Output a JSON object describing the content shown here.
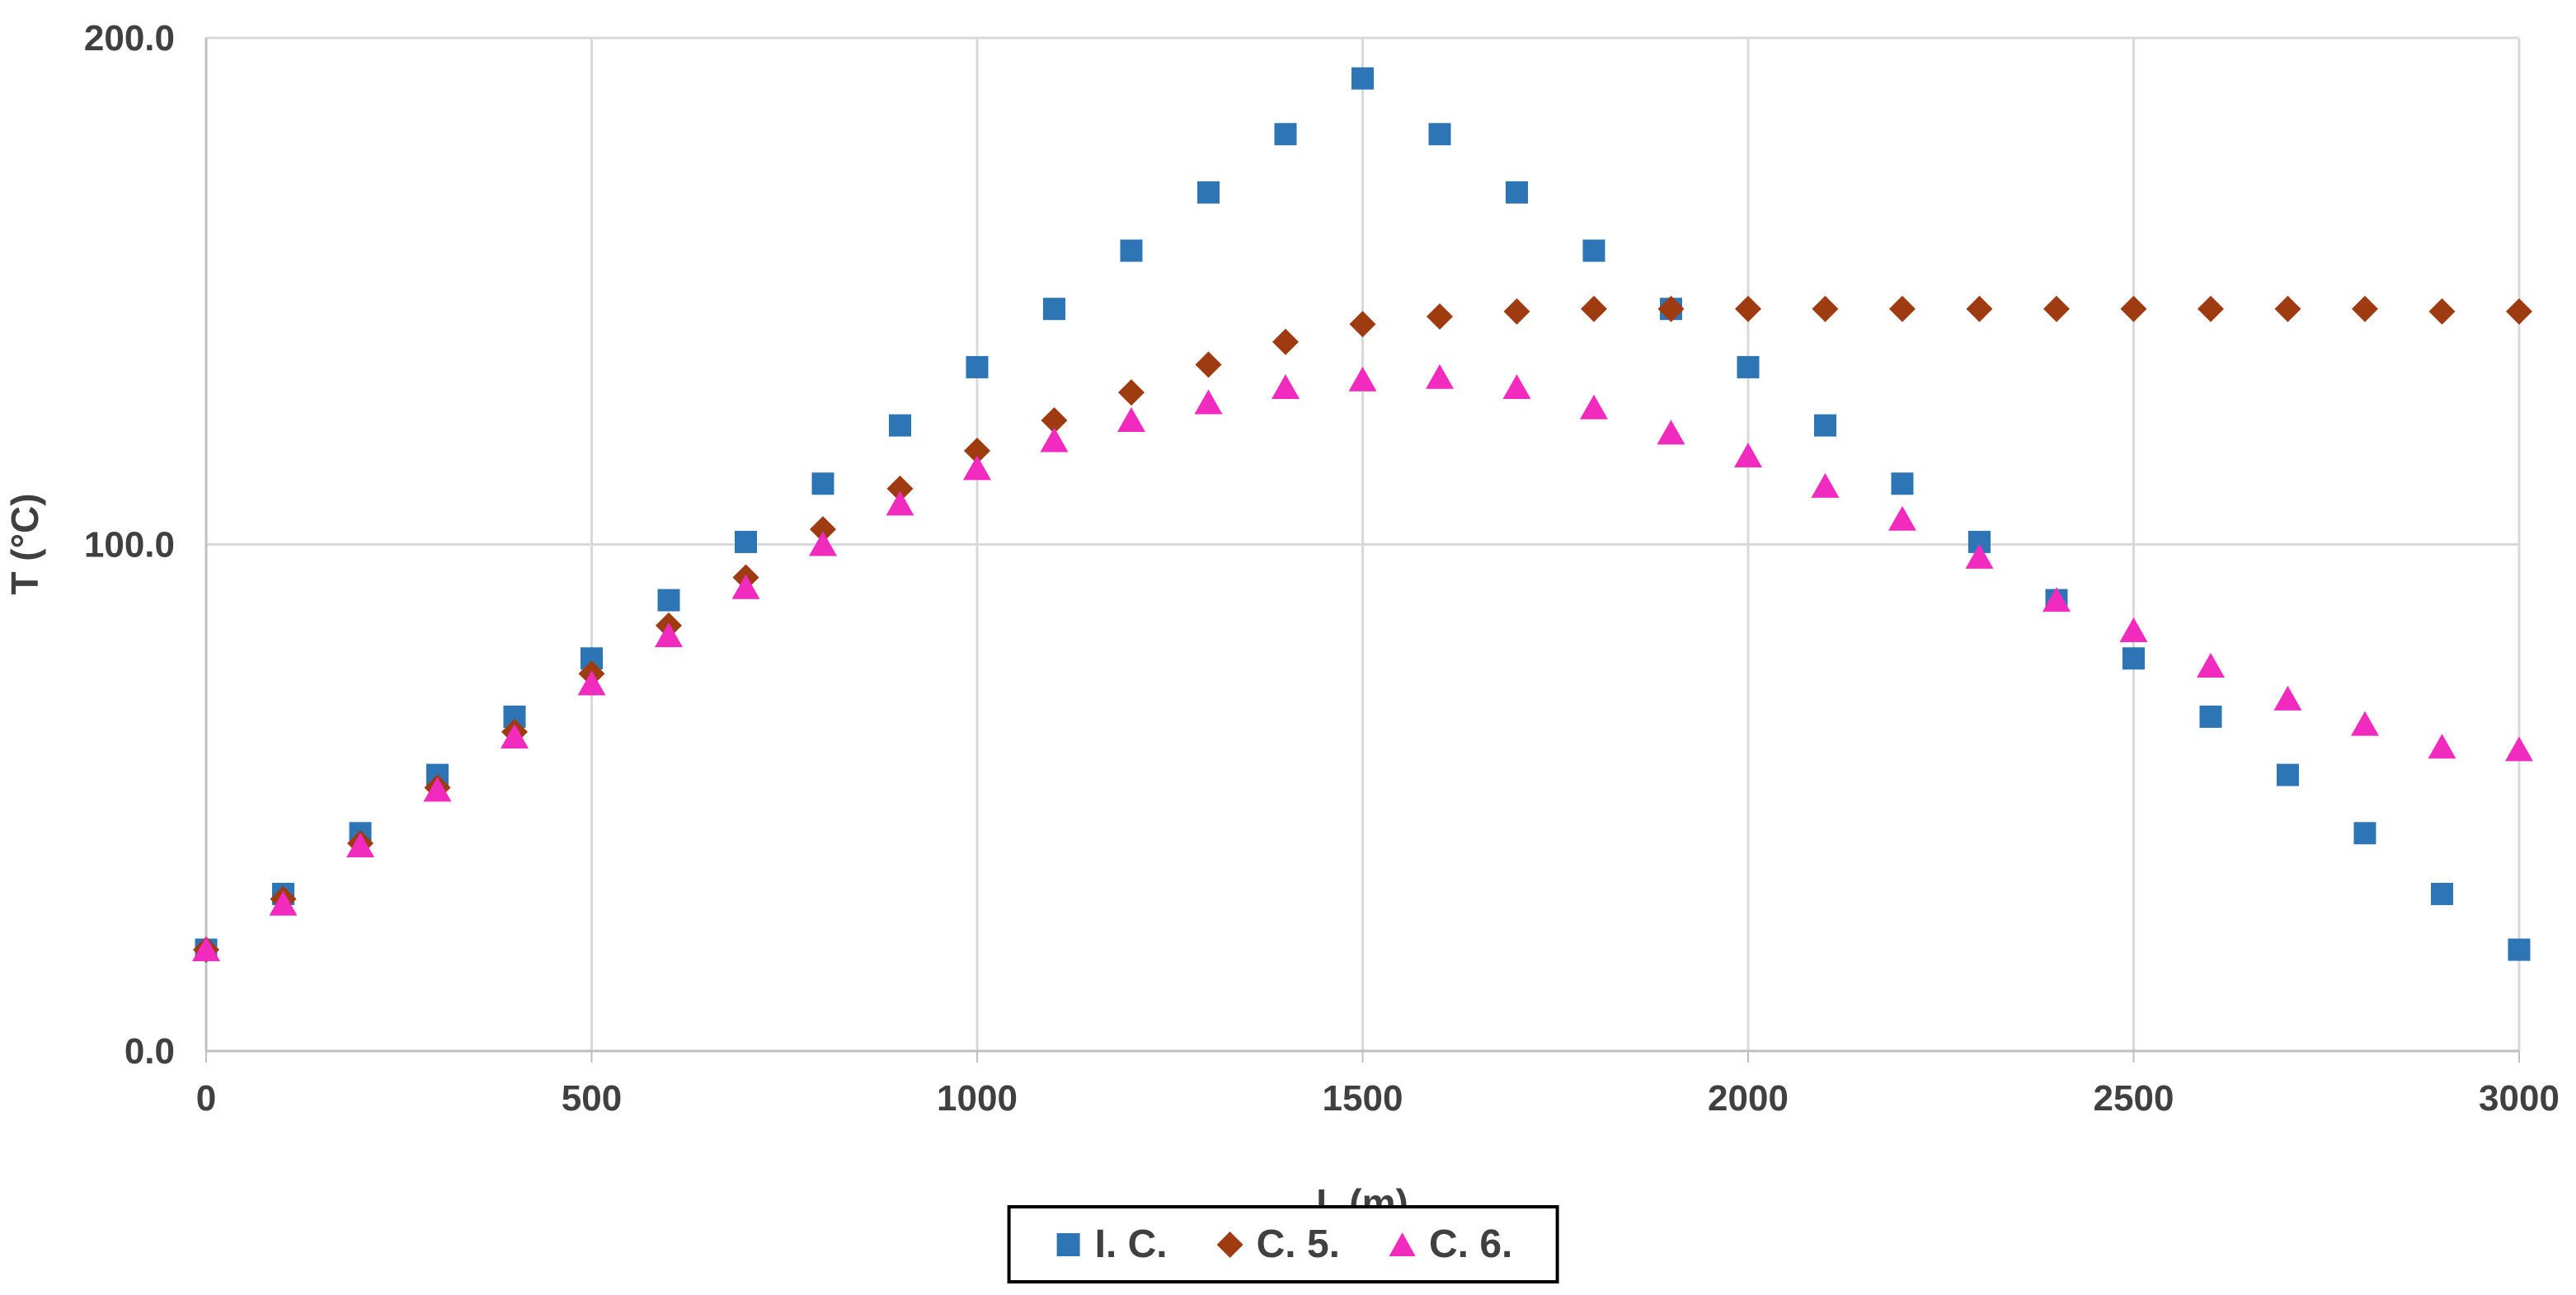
{
  "chart": {
    "y_axis": {
      "title": "T (°C)",
      "tick_labels": [
        "0.0",
        "100.0",
        "200.0"
      ],
      "tick_values": [
        0,
        100,
        200
      ]
    },
    "x_axis": {
      "title": "L (m)",
      "tick_labels": [
        "0",
        "500",
        "1000",
        "1500",
        "2000",
        "2500",
        "3000"
      ],
      "tick_values": [
        0,
        500,
        1000,
        1500,
        2000,
        2500,
        3000
      ]
    },
    "legend": {
      "items": [
        {
          "label": "I. C.",
          "marker": "square",
          "color": "#2E75B6"
        },
        {
          "label": "C. 5.",
          "marker": "diamond",
          "color": "#9E3B10"
        },
        {
          "label": "C. 6.",
          "marker": "triangle",
          "color": "#F02BBE"
        }
      ]
    },
    "colors": {
      "gridline": "#D9D9D9",
      "axis": "#BFBFBF",
      "text": "#404040",
      "legend_border": "#000000"
    }
  },
  "chart_data": {
    "type": "scatter",
    "title": "",
    "xlabel": "L (m)",
    "ylabel": "T (°C)",
    "xlim": [
      0,
      3000
    ],
    "ylim": [
      0,
      200
    ],
    "grid": true,
    "legend_position": "bottom",
    "x": [
      0,
      100,
      200,
      300,
      400,
      500,
      600,
      700,
      800,
      900,
      1000,
      1100,
      1200,
      1300,
      1400,
      1500,
      1600,
      1700,
      1800,
      1900,
      2000,
      2100,
      2200,
      2300,
      2400,
      2500,
      2600,
      2700,
      2800,
      2900,
      3000
    ],
    "series": [
      {
        "name": "I. C.",
        "marker": "square",
        "color": "#2E75B6",
        "values": [
          20,
          31,
          43,
          54.5,
          66,
          77.5,
          89,
          100.5,
          112,
          123.5,
          135,
          146.5,
          158,
          169.5,
          181,
          192,
          181,
          169.5,
          158,
          146.5,
          135,
          123.5,
          112,
          100.5,
          89,
          77.5,
          66,
          54.5,
          43,
          31,
          20
        ]
      },
      {
        "name": "C. 5.",
        "marker": "diamond",
        "color": "#9E3B10",
        "values": [
          20,
          30,
          41,
          52,
          63,
          74.5,
          84,
          93.5,
          103,
          111,
          118.5,
          124.5,
          130,
          135.5,
          140,
          143.5,
          145,
          146,
          146.5,
          146.5,
          146.5,
          146.5,
          146.5,
          146.5,
          146.5,
          146.5,
          146.5,
          146.5,
          146.5,
          146,
          146
        ]
      },
      {
        "name": "C. 6.",
        "marker": "triangle",
        "color": "#F02BBE",
        "values": [
          20,
          29,
          40.5,
          51.5,
          62,
          72.5,
          82,
          91.5,
          100,
          108,
          115,
          120.5,
          124.5,
          128,
          131,
          132.5,
          133,
          131,
          127,
          122,
          117.5,
          111.5,
          105,
          97.5,
          89,
          83,
          76,
          69.5,
          64.5,
          60,
          59.5
        ]
      }
    ]
  }
}
